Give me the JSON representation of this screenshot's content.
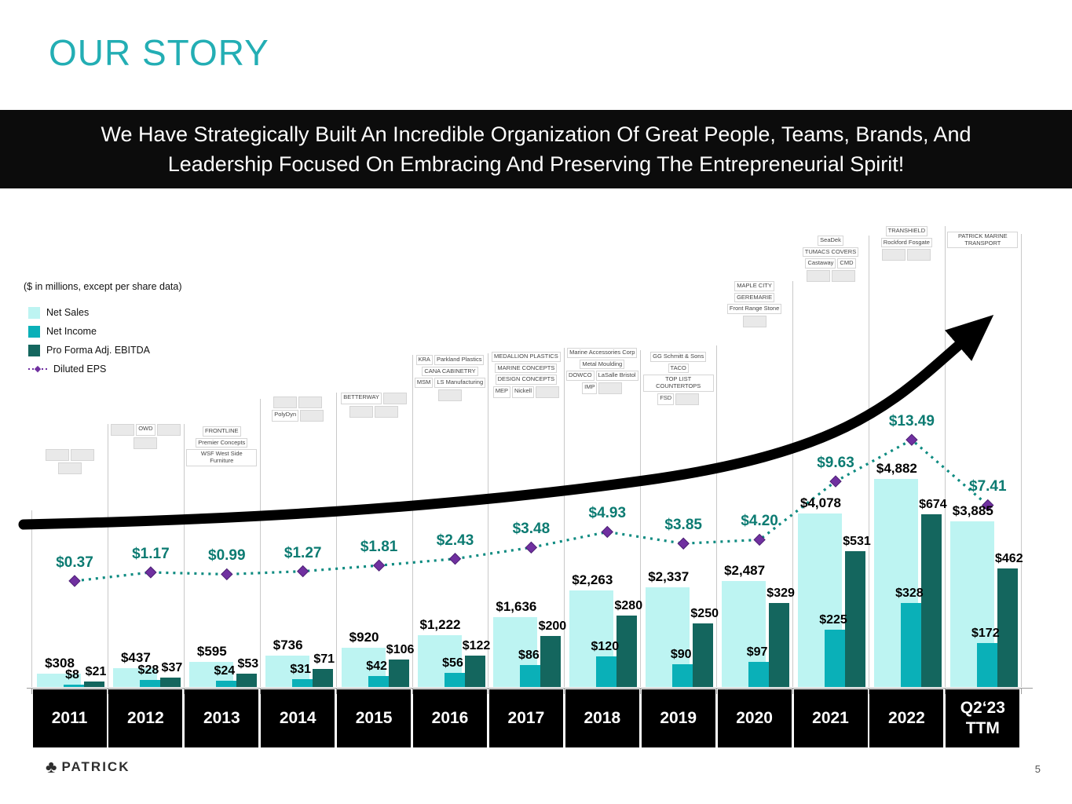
{
  "slide": {
    "title": "OUR STORY",
    "banner_line1": "We Have Strategically Built An Incredible Organization Of Great People, Teams, Brands, And",
    "banner_line2": "Leadership Focused On Embracing And Preserving The Entrepreneurial Spirit!",
    "note": "($ in millions, except per share data)",
    "footer_brand": "PATRICK",
    "page_number": "5"
  },
  "legend": [
    {
      "label": "Net Sales",
      "color": "#bdf4f2",
      "type": "swatch"
    },
    {
      "label": "Net Income",
      "color": "#0ab0b8",
      "type": "swatch"
    },
    {
      "label": "Pro Forma Adj. EBITDA",
      "color": "#14665e",
      "type": "swatch"
    },
    {
      "label": "Diluted EPS",
      "color": "#7030a0",
      "type": "line-marker"
    }
  ],
  "chart_data": {
    "type": "bar",
    "unit_note": "($ in millions, except per share data)",
    "categories": [
      "2011",
      "2012",
      "2013",
      "2014",
      "2015",
      "2016",
      "2017",
      "2018",
      "2019",
      "2020",
      "2021",
      "2022",
      "Q2‘23 TTM"
    ],
    "series": [
      {
        "name": "Net Sales",
        "color": "#bdf4f2",
        "values": [
          308,
          437,
          595,
          736,
          920,
          1222,
          1636,
          2263,
          2337,
          2487,
          4078,
          4882,
          3885
        ],
        "labels": [
          "$308",
          "$437",
          "$595",
          "$736",
          "$920",
          "$1,222",
          "$1,636",
          "$2,263",
          "$2,337",
          "$2,487",
          "$4,078",
          "$4,882",
          "$3,885"
        ]
      },
      {
        "name": "Net Income",
        "color": "#0ab0b8",
        "values": [
          8,
          28,
          24,
          31,
          42,
          56,
          86,
          120,
          90,
          97,
          225,
          328,
          172
        ],
        "labels": [
          "$8",
          "$28",
          "$24",
          "$31",
          "$42",
          "$56",
          "$86",
          "$120",
          "$90",
          "$97",
          "$225",
          "$328",
          "$172"
        ]
      },
      {
        "name": "Pro Forma Adj. EBITDA",
        "color": "#14665e",
        "values": [
          21,
          37,
          53,
          71,
          106,
          122,
          200,
          280,
          250,
          329,
          531,
          674,
          462
        ],
        "labels": [
          "$21",
          "$37",
          "$53",
          "$71",
          "$106",
          "$122",
          "$200",
          "$280",
          "$250",
          "$329",
          "$531",
          "$674",
          "$462"
        ]
      },
      {
        "name": "Diluted EPS",
        "chart_type": "line",
        "color": "#0e8b81",
        "marker_color": "#7030a0",
        "values": [
          0.37,
          1.17,
          0.99,
          1.27,
          1.81,
          2.43,
          3.48,
          4.93,
          3.85,
          4.2,
          9.63,
          13.49,
          7.41
        ],
        "labels": [
          "$0.37",
          "$1.17",
          "$0.99",
          "$1.27",
          "$1.81",
          "$2.43",
          "$3.48",
          "$4.93",
          "$3.85",
          "$4.20",
          "$9.63",
          "$13.49",
          "$7.41"
        ]
      }
    ],
    "value_labels": true,
    "legend_position": "top-left",
    "gridlines": "vertical column separators only"
  },
  "logo_clusters": [
    {
      "names": [
        "",
        "",
        ""
      ]
    },
    {
      "names": [
        "",
        "OWD",
        "",
        ""
      ]
    },
    {
      "names": [
        "FRONTLINE",
        "Premier Concepts",
        "WSF West Side Furniture"
      ]
    },
    {
      "names": [
        "",
        "",
        "PolyDyn",
        ""
      ]
    },
    {
      "names": [
        "BETTERWAY",
        "",
        "",
        ""
      ]
    },
    {
      "names": [
        "KRA",
        "Parkland Plastics",
        "CANA CABINETRY",
        "MSM",
        "LS Manufacturing",
        ""
      ]
    },
    {
      "names": [
        "MEDALLION PLASTICS",
        "MARINE CONCEPTS",
        "DESIGN CONCEPTS",
        "MEP",
        "Nickell",
        ""
      ]
    },
    {
      "names": [
        "Marine Accessories Corp",
        "Metal Moulding",
        "DOWCO",
        "LaSalle Bristol",
        "IMP",
        ""
      ]
    },
    {
      "names": [
        "GG Schmitt & Sons",
        "TACO",
        "TOP LIST COUNTERTOPS",
        "FSD",
        ""
      ]
    },
    {
      "names": [
        "MAPLE CITY",
        "GEREMARIE",
        "Front Range Stone",
        ""
      ]
    },
    {
      "names": [
        "SeaDek",
        "TUMACS COVERS",
        "Castaway",
        "CMD",
        "",
        ""
      ]
    },
    {
      "names": [
        "TRANSHIELD",
        "Rockford Fosgate",
        "",
        ""
      ]
    },
    {
      "names": [
        "PATRICK MARINE TRANSPORT"
      ]
    }
  ]
}
